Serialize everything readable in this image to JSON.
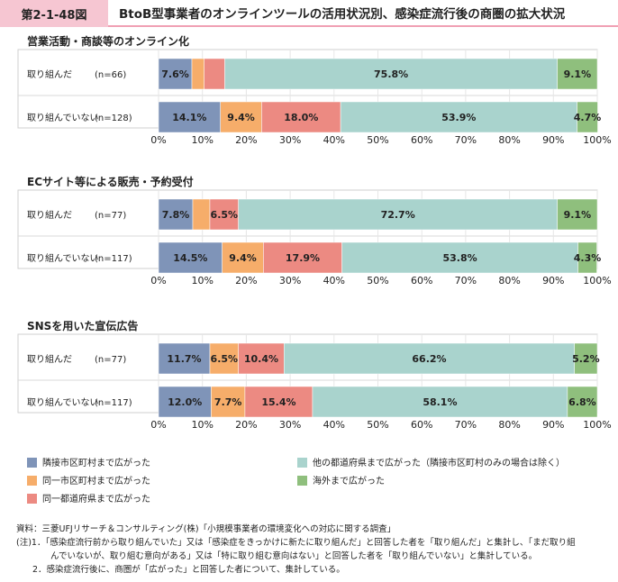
{
  "header": {
    "figure_no": "第2-1-48図",
    "title": "BtoB型事業者のオンラインツールの活用状況別、感染症流行後の商圏の拡大状況"
  },
  "colors": {
    "neighbor": "#7f94b8",
    "same_city": "#f6ad6a",
    "same_pref": "#ec8a82",
    "other_pref": "#a9d3cd",
    "overseas": "#8fbf7d"
  },
  "chart_data": [
    {
      "type": "bar",
      "orientation": "horizontal",
      "stacked": true,
      "title": "営業活動・商談等のオンライン化",
      "categories": [
        "取り組んだ",
        "取り組んでいない"
      ],
      "n_labels": [
        "(n=66)",
        "(n=128)"
      ],
      "series": [
        {
          "name": "隣接市区町村まで広がった",
          "values": [
            7.6,
            14.1
          ],
          "labels": [
            "7.6%",
            "14.1%"
          ]
        },
        {
          "name": "同一市区町村まで広がった",
          "values": [
            2.8,
            9.4
          ],
          "labels": [
            "",
            "9.4%"
          ]
        },
        {
          "name": "同一都道府県まで広がった",
          "values": [
            4.7,
            18.0
          ],
          "labels": [
            "",
            "18.0%"
          ]
        },
        {
          "name": "他の都道府県まで広がった（隣接市区町村のみの場合は除く）",
          "values": [
            75.8,
            53.9
          ],
          "labels": [
            "75.8%",
            "53.9%"
          ]
        },
        {
          "name": "海外まで広がった",
          "values": [
            9.1,
            4.7
          ],
          "labels": [
            "9.1%",
            "4.7%"
          ]
        }
      ],
      "xlim": [
        0,
        100
      ],
      "xticks": [
        "0%",
        "10%",
        "20%",
        "30%",
        "40%",
        "50%",
        "60%",
        "70%",
        "80%",
        "90%",
        "100%"
      ]
    },
    {
      "type": "bar",
      "orientation": "horizontal",
      "stacked": true,
      "title": "ECサイト等による販売・予約受付",
      "categories": [
        "取り組んだ",
        "取り組んでいない"
      ],
      "n_labels": [
        "(n=77)",
        "(n=117)"
      ],
      "series": [
        {
          "name": "隣接市区町村まで広がった",
          "values": [
            7.8,
            14.5
          ],
          "labels": [
            "7.8%",
            "14.5%"
          ]
        },
        {
          "name": "同一市区町村まで広がった",
          "values": [
            3.9,
            9.4
          ],
          "labels": [
            "",
            "9.4%"
          ]
        },
        {
          "name": "同一都道府県まで広がった",
          "values": [
            6.5,
            17.9
          ],
          "labels": [
            "6.5%",
            "17.9%"
          ]
        },
        {
          "name": "他の都道府県まで広がった（隣接市区町村のみの場合は除く）",
          "values": [
            72.7,
            53.8
          ],
          "labels": [
            "72.7%",
            "53.8%"
          ]
        },
        {
          "name": "海外まで広がった",
          "values": [
            9.1,
            4.3
          ],
          "labels": [
            "9.1%",
            "4.3%"
          ]
        }
      ],
      "xlim": [
        0,
        100
      ],
      "xticks": [
        "0%",
        "10%",
        "20%",
        "30%",
        "40%",
        "50%",
        "60%",
        "70%",
        "80%",
        "90%",
        "100%"
      ]
    },
    {
      "type": "bar",
      "orientation": "horizontal",
      "stacked": true,
      "title": "SNSを用いた宣伝広告",
      "categories": [
        "取り組んだ",
        "取り組んでいない"
      ],
      "n_labels": [
        "(n=77)",
        "(n=117)"
      ],
      "series": [
        {
          "name": "隣接市区町村まで広がった",
          "values": [
            11.7,
            12.0
          ],
          "labels": [
            "11.7%",
            "12.0%"
          ]
        },
        {
          "name": "同一市区町村まで広がった",
          "values": [
            6.5,
            7.7
          ],
          "labels": [
            "6.5%",
            "7.7%"
          ]
        },
        {
          "name": "同一都道府県まで広がった",
          "values": [
            10.4,
            15.4
          ],
          "labels": [
            "10.4%",
            "15.4%"
          ]
        },
        {
          "name": "他の都道府県まで広がった（隣接市区町村のみの場合は除く）",
          "values": [
            66.2,
            58.1
          ],
          "labels": [
            "66.2%",
            "58.1%"
          ]
        },
        {
          "name": "海外まで広がった",
          "values": [
            5.2,
            6.8
          ],
          "labels": [
            "5.2%",
            "6.8%"
          ]
        }
      ],
      "xlim": [
        0,
        100
      ],
      "xticks": [
        "0%",
        "10%",
        "20%",
        "30%",
        "40%",
        "50%",
        "60%",
        "70%",
        "80%",
        "90%",
        "100%"
      ]
    }
  ],
  "legend": [
    {
      "label": "隣接市区町村まで広がった",
      "color_key": "neighbor"
    },
    {
      "label": "同一市区町村まで広がった",
      "color_key": "same_city"
    },
    {
      "label": "同一都道府県まで広がった",
      "color_key": "same_pref"
    },
    {
      "label": "他の都道府県まで広がった（隣接市区町村のみの場合は除く）",
      "color_key": "other_pref"
    },
    {
      "label": "海外まで広がった",
      "color_key": "overseas"
    }
  ],
  "notes": {
    "source": "資料：三菱UFJリサーチ＆コンサルティング(株)「小規模事業者の環境変化への対応に関する調査」",
    "note1_a": "(注)1．「感染症流行前から取り組んでいた」又は「感染症をきっかけに新たに取り組んだ」と回答した者を「取り組んだ」と集計し、「まだ取り組",
    "note1_b": "んでいないが、取り組む意向がある」又は「特に取り組む意向はない」と回答した者を「取り組んでいない」と集計している。",
    "note2": "2．感染症流行後に、商圏が「広がった」と回答した者について、集計している。"
  }
}
